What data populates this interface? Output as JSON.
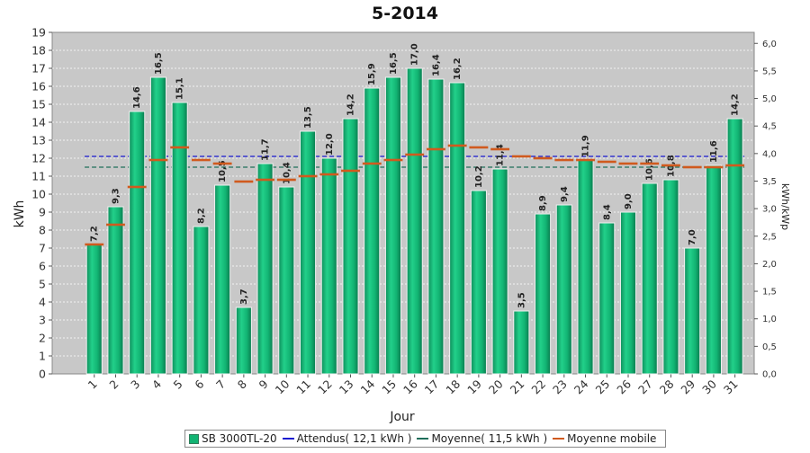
{
  "chart_data": {
    "type": "bar",
    "title": "5-2014",
    "xlabel": "Jour",
    "ylabel": "kWh",
    "y2label": "kWh/kWp",
    "ylim": [
      0,
      19
    ],
    "y2lim": [
      0,
      6.2
    ],
    "grid": true,
    "legend_position": "bottom",
    "categories": [
      "1",
      "2",
      "3",
      "4",
      "5",
      "6",
      "7",
      "8",
      "9",
      "10",
      "11",
      "12",
      "13",
      "14",
      "15",
      "16",
      "17",
      "18",
      "19",
      "20",
      "21",
      "22",
      "23",
      "24",
      "25",
      "26",
      "27",
      "28",
      "29",
      "30",
      "31"
    ],
    "series": [
      {
        "name": "SB 3000TL-20",
        "kind": "bar",
        "color": "#12b473",
        "values": [
          7.2,
          9.3,
          14.6,
          16.5,
          15.1,
          8.2,
          10.5,
          3.7,
          11.7,
          10.4,
          13.5,
          12.0,
          14.2,
          15.9,
          16.5,
          17.0,
          16.4,
          16.2,
          10.2,
          11.4,
          3.5,
          8.9,
          9.4,
          11.9,
          8.4,
          9.0,
          10.6,
          10.8,
          7.0,
          11.6,
          14.2
        ],
        "data_labels": [
          "7,2",
          "9,3",
          "14,6",
          "16,5",
          "15,1",
          "8,2",
          "10,5",
          "3,7",
          "11,7",
          "10,4",
          "13,5",
          "12,0",
          "14,2",
          "15,9",
          "16,5",
          "17,0",
          "16,4",
          "16,2",
          "10,2",
          "11,4",
          "3,5",
          "8,9",
          "9,4",
          "11,9",
          "8,4",
          "9,0",
          "10,6",
          "10,8",
          "7,0",
          "11,6",
          "14,2"
        ]
      },
      {
        "name": "Attendus( 12,1 kWh )",
        "kind": "hline",
        "color": "#1a1ad0",
        "value": 12.1
      },
      {
        "name": "Moyenne( 11,5 kWh )",
        "kind": "hline",
        "color": "#1e6e5a",
        "value": 11.5
      },
      {
        "name": "Moyenne mobile",
        "kind": "marker",
        "color": "#d05a1e",
        "values": [
          7.2,
          8.3,
          10.4,
          11.9,
          12.6,
          11.9,
          11.7,
          10.7,
          10.8,
          10.8,
          11.0,
          11.1,
          11.3,
          11.7,
          11.9,
          12.2,
          12.5,
          12.7,
          12.6,
          12.5,
          12.1,
          12.0,
          11.9,
          11.9,
          11.8,
          11.7,
          11.7,
          11.6,
          11.5,
          11.5,
          11.6
        ]
      }
    ],
    "yticks": [
      "0",
      "1",
      "2",
      "3",
      "4",
      "5",
      "6",
      "7",
      "8",
      "9",
      "10",
      "11",
      "12",
      "13",
      "14",
      "15",
      "16",
      "17",
      "18",
      "19"
    ],
    "y2ticks": [
      "0,0",
      "0,5",
      "1,0",
      "1,5",
      "2,0",
      "2,5",
      "3,0",
      "3,5",
      "4,0",
      "4,5",
      "5,0",
      "5,5",
      "6,0"
    ]
  }
}
